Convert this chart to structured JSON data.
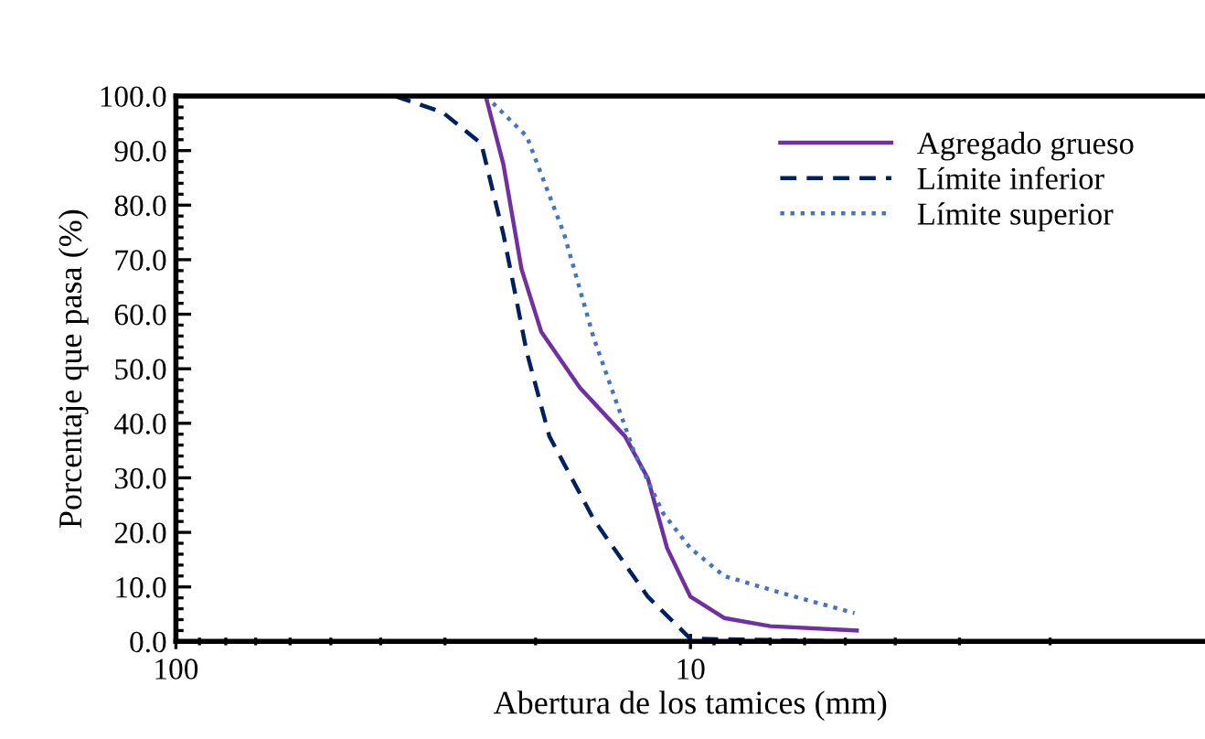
{
  "chart_data": {
    "type": "line",
    "xlabel": "Abertura de los tamices (mm)",
    "ylabel": "Porcentaje que pasa (%)",
    "log": "x",
    "xlim": [
      100,
      1
    ],
    "xticks": [
      100,
      10
    ],
    "ylim": [
      0,
      100
    ],
    "yticks": [
      {
        "value": 0,
        "label": "0.0"
      },
      {
        "value": 10,
        "label": "10.0"
      },
      {
        "value": 20,
        "label": "20.0"
      },
      {
        "value": 30,
        "label": "30.0"
      },
      {
        "value": 40,
        "label": "40.0"
      },
      {
        "value": 50,
        "label": "50.0"
      },
      {
        "value": 60,
        "label": "60.0"
      },
      {
        "value": 70,
        "label": "70.0"
      },
      {
        "value": 80,
        "label": "80.0"
      },
      {
        "value": 90,
        "label": "90.0"
      },
      {
        "value": 100,
        "label": "100.0"
      }
    ],
    "grid": false,
    "legend": "top right",
    "marker": "none",
    "series": [
      {
        "name": "Agregado grueso",
        "color": "#7030a0",
        "line_style": "solid",
        "x": [
          25,
          23.1,
          21.3,
          19.5,
          16.4,
          13.4,
          12.1,
          11.1,
          10,
          8.6,
          7,
          4.75
        ],
        "values": [
          100,
          87.5,
          68.3,
          56.8,
          46.5,
          37.6,
          29.9,
          17.1,
          8.2,
          4.3,
          2.8,
          2
        ]
      },
      {
        "name": "Límite inferior",
        "color": "#002060",
        "line_style": "dashed",
        "x": [
          37.5,
          30.3,
          25.5,
          23.1,
          20.8,
          18.8,
          15.4,
          12.1,
          10,
          4.75
        ],
        "values": [
          100,
          97,
          91.3,
          74.7,
          53,
          37.6,
          22.3,
          8.2,
          0.5,
          0
        ]
      },
      {
        "name": "Límite superior",
        "color": "#4472c4",
        "line_style": "dotted",
        "x": [
          25,
          20.8,
          17.6,
          15.4,
          12.9,
          11.3,
          10,
          8.6,
          6.6,
          4.8
        ],
        "values": [
          100,
          92.6,
          74.7,
          55.5,
          35,
          23.5,
          17.1,
          12,
          8.8,
          5.2
        ]
      }
    ]
  }
}
